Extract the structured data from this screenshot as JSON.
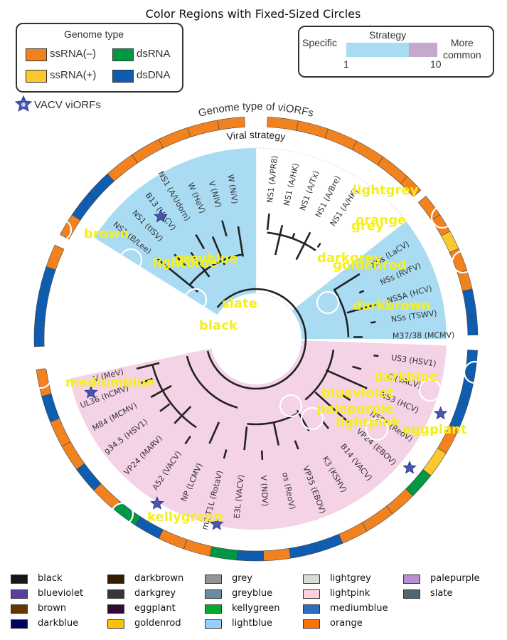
{
  "title": "Color Regions with Fixed-Sized Circles",
  "genome_legend": {
    "title": "Genome type",
    "items": [
      {
        "label": "ssRNA(–)",
        "color": "#f28220"
      },
      {
        "label": "ssRNA(+)",
        "color": "#fbc82d"
      },
      {
        "label": "dsRNA",
        "color": "#009843"
      },
      {
        "label": "dsDNA",
        "color": "#0e5db0"
      }
    ]
  },
  "strategy_legend": {
    "title": "Strategy",
    "left_label": "Specific",
    "right_label": "More\ncommon",
    "tick_min": "1",
    "tick_max": "10",
    "color_low": "#a8dcf2",
    "color_high": "#c4a9cc"
  },
  "vacv_label": "VACV viORFs",
  "ring_title": "Genome type of viORFs",
  "inner_title": "Viral strategy",
  "tree_labels": [
    "NS1 (B/Lee)",
    "NS1 (tISV)",
    "B13 (VACV)",
    "NS1 (A/Udorn)",
    "W (HeV)",
    "V (NiV)",
    "W (NiV)",
    "NS1 (A/PR8)",
    "NS1 (A/HK)",
    "NS1 (A/Tx)",
    "NS1 (A/Bre)",
    "NS1 (A/HK)",
    "NSs (LaCV)",
    "NSs (RVFV)",
    "NS5A (HCV)",
    "NSs (TSWV)",
    "M37/38 (MCMV)",
    "US3 (HSV1)",
    "C (VACV)",
    "NS3 (HCV)",
    "NSP1 (ReoV)",
    "VP24 (EBOV)",
    "B14 (VACV)",
    "K3 (KSHV)",
    "VP35 (EBOV)",
    "σs (ReoV)",
    "V (NDV)",
    "E3L (VACV)",
    "m2 T1L (RotaV)",
    "NP (LCMV)",
    "A52 (VACV)",
    "VP24 (MARV)",
    "g34.5 (HSV1)",
    "M84 (MCMV)",
    "UL36 (hCMV)",
    "V (MeV)"
  ],
  "annotations": [
    {
      "text": "lightgrey"
    },
    {
      "text": "orange"
    },
    {
      "text": "grey"
    },
    {
      "text": "brown"
    },
    {
      "text": "lightblue"
    },
    {
      "text": "greyblue"
    },
    {
      "text": "darkgrey"
    },
    {
      "text": "goldenrod"
    },
    {
      "text": "slate"
    },
    {
      "text": "darkbrown"
    },
    {
      "text": "black"
    },
    {
      "text": "darkblue"
    },
    {
      "text": "mediumblue"
    },
    {
      "text": "blueviolet"
    },
    {
      "text": "palepurple"
    },
    {
      "text": "lightpink"
    },
    {
      "text": "eggplant"
    },
    {
      "text": "kellygreen"
    }
  ],
  "color_legend": [
    {
      "name": "black",
      "color": "#161616"
    },
    {
      "name": "blueviolet",
      "color": "#5b3fa0"
    },
    {
      "name": "brown",
      "color": "#653700"
    },
    {
      "name": "darkblue",
      "color": "#00035b"
    },
    {
      "name": "darkbrown",
      "color": "#341c02"
    },
    {
      "name": "darkgrey",
      "color": "#363737"
    },
    {
      "name": "eggplant",
      "color": "#380835"
    },
    {
      "name": "goldenrod",
      "color": "#fac205"
    },
    {
      "name": "grey",
      "color": "#929591"
    },
    {
      "name": "greyblue",
      "color": "#6b8ba4"
    },
    {
      "name": "kellygreen",
      "color": "#02ab2e"
    },
    {
      "name": "lightblue",
      "color": "#95d0fc"
    },
    {
      "name": "lightgrey",
      "color": "#d8dcd6"
    },
    {
      "name": "lightpink",
      "color": "#ffd1df"
    },
    {
      "name": "mediumblue",
      "color": "#2c6fbb"
    },
    {
      "name": "orange",
      "color": "#f97306"
    },
    {
      "name": "palepurple",
      "color": "#b790d4"
    },
    {
      "name": "slate",
      "color": "#516572"
    }
  ]
}
